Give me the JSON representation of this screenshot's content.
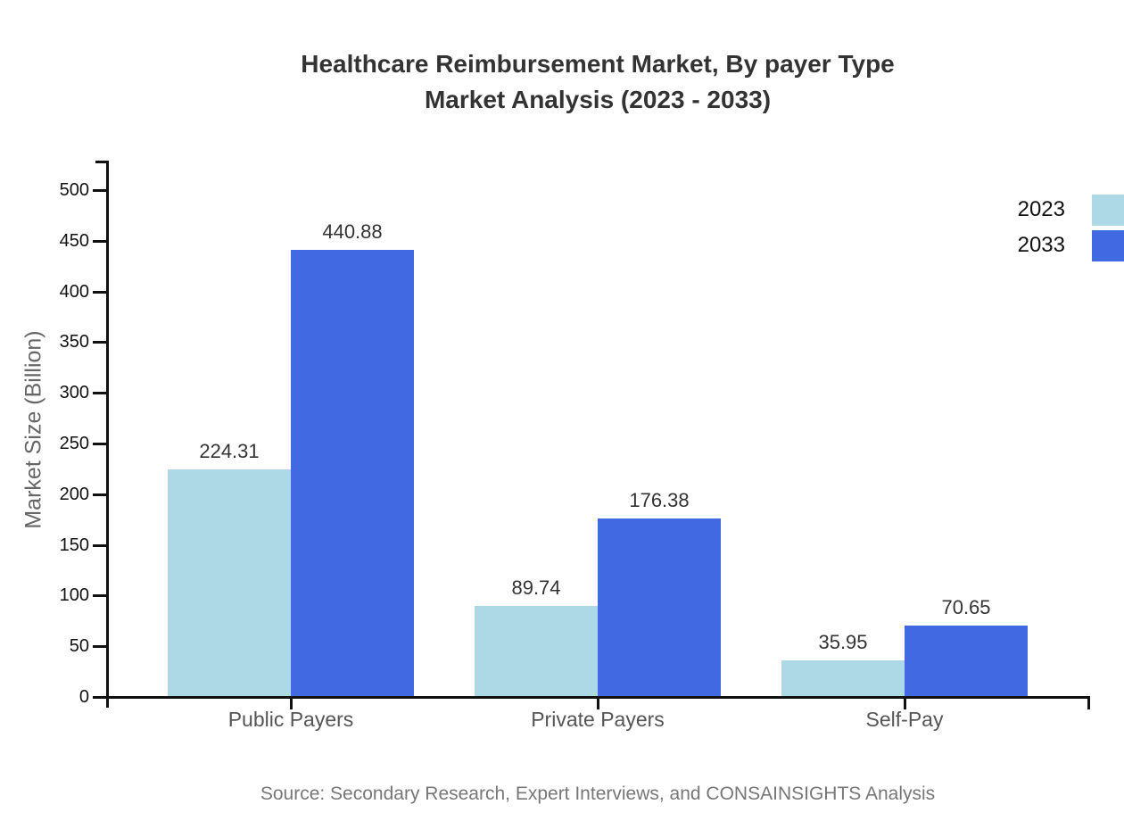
{
  "chart_data": {
    "type": "bar",
    "title": "Healthcare Reimbursement Market, By payer Type",
    "subtitle": "Market Analysis (2023 - 2033)",
    "ylabel": "Market Size (Billion)",
    "categories": [
      "Public Payers",
      "Private Payers",
      "Self-Pay"
    ],
    "series": [
      {
        "name": "2023",
        "color": "#ADD8E6",
        "values": [
          224.31,
          89.74,
          35.95
        ]
      },
      {
        "name": "2033",
        "color": "#4169E1",
        "values": [
          440.88,
          176.38,
          70.65
        ]
      }
    ],
    "y_ticks": [
      0,
      50,
      100,
      150,
      200,
      250,
      300,
      350,
      400,
      450,
      500
    ],
    "ylim": [
      0,
      500
    ],
    "grid": false,
    "value_labels": true,
    "legend_position": "top-right",
    "axis_color": "#111111",
    "source": "Source: Secondary Research, Expert Interviews, and CONSAINSIGHTS Analysis"
  }
}
